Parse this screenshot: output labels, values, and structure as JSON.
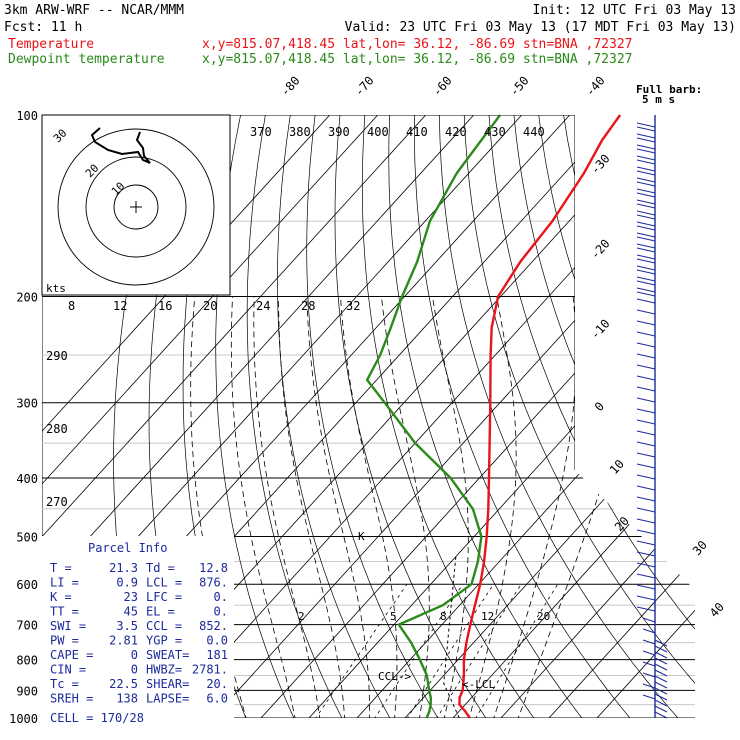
{
  "header": {
    "model": "3km ARW-WRF -- NCAR/MMM",
    "init": "Init: 12 UTC Fri 03 May 13",
    "fcst": "Fcst:   11 h",
    "valid": "Valid: 23 UTC Fri 03 May 13 (17 MDT Fri 03 May 13)",
    "temp_label": "Temperature",
    "temp_loc": "x,y=815.07,418.45   lat,lon= 36.12, -86.69  stn=BNA ,72327",
    "dew_label": "Dewpoint temperature",
    "dew_loc": "x,y=815.07,418.45   lat,lon= 36.12, -86.69  stn=BNA ,72327"
  },
  "colors": {
    "temperature": "#e8141a",
    "dewpoint": "#2a8a1a",
    "wind": "#1c2a9c",
    "grid": "#000000"
  },
  "chart_data": {
    "type": "line",
    "plot": "skew-T log-p",
    "pressure_levels": [
      "100",
      "200",
      "300",
      "400",
      "500",
      "600",
      "700",
      "800",
      "900",
      "1000"
    ],
    "isotherm_labels": [
      "-80",
      "-70",
      "-60",
      "-50",
      "-40",
      "-30",
      "-20",
      "-10",
      "0",
      "10",
      "20",
      "30",
      "40"
    ],
    "theta_labels": [
      "370",
      "380",
      "390",
      "400",
      "410",
      "420",
      "430",
      "440"
    ],
    "theta_low_labels": [
      "290",
      "280",
      "270"
    ],
    "mixing_ratio_labels": [
      "2",
      "5",
      "8",
      "12",
      "20"
    ],
    "hodo_speed_labels": [
      "8",
      "12",
      "16",
      "20",
      "24",
      "28",
      "32"
    ],
    "hodo_ring_labels": [
      "30",
      "20",
      "10"
    ],
    "hodo_kts": "kts",
    "barb_legend": [
      "Full barb:",
      "5 m s"
    ],
    "series": [
      {
        "name": "Temperature",
        "points": [
          [
            1000,
            23.5
          ],
          [
            975,
            21.3
          ],
          [
            950,
            18.8
          ],
          [
            925,
            17.5
          ],
          [
            900,
            16.8
          ],
          [
            850,
            14.2
          ],
          [
            800,
            11.2
          ],
          [
            750,
            8.5
          ],
          [
            700,
            5.9
          ],
          [
            650,
            3.2
          ],
          [
            600,
            0.3
          ],
          [
            550,
            -3.2
          ],
          [
            500,
            -7.4
          ],
          [
            450,
            -12.3
          ],
          [
            400,
            -18.0
          ],
          [
            350,
            -24.5
          ],
          [
            300,
            -32.0
          ],
          [
            250,
            -41.0
          ],
          [
            225,
            -46.0
          ],
          [
            200,
            -50.5
          ],
          [
            175,
            -52.5
          ],
          [
            150,
            -53.5
          ],
          [
            125,
            -56.0
          ],
          [
            110,
            -58.5
          ],
          [
            100,
            -59.5
          ]
        ]
      },
      {
        "name": "Dewpoint temperature",
        "points": [
          [
            1000,
            14.5
          ],
          [
            975,
            13.8
          ],
          [
            950,
            12.8
          ],
          [
            925,
            11.5
          ],
          [
            900,
            9.8
          ],
          [
            850,
            6.5
          ],
          [
            800,
            2.0
          ],
          [
            750,
            -3.0
          ],
          [
            700,
            -9.0
          ],
          [
            650,
            -3.5
          ],
          [
            600,
            -1.5
          ],
          [
            550,
            -4.5
          ],
          [
            500,
            -8.5
          ],
          [
            450,
            -15.5
          ],
          [
            400,
            -26.0
          ],
          [
            350,
            -40.0
          ],
          [
            300,
            -54.0
          ],
          [
            275,
            -62.0
          ],
          [
            250,
            -64.0
          ],
          [
            225,
            -67.0
          ],
          [
            200,
            -70.5
          ],
          [
            175,
            -74.0
          ],
          [
            150,
            -79.0
          ],
          [
            125,
            -82.5
          ],
          [
            100,
            -84.5
          ]
        ]
      }
    ],
    "parcel_info": {
      "title": "Parcel Info",
      "rows": [
        [
          "T  =",
          "21.3",
          "Td =",
          "12.8"
        ],
        [
          "LI =",
          "0.9",
          "LCL =",
          "876."
        ],
        [
          "K  =",
          "23",
          "LFC =",
          "0."
        ],
        [
          "TT =",
          "45",
          "EL  =",
          "0."
        ],
        [
          "SWI =",
          "3.5",
          "CCL =",
          "852."
        ],
        [
          "PW =",
          "2.81",
          "YGP =",
          "0.0"
        ],
        [
          "CAPE =",
          "0",
          "SWEAT=",
          "181"
        ],
        [
          "CIN  =",
          "0",
          "HWBZ=",
          "2781."
        ],
        [
          "Tc =",
          "22.5",
          "SHEAR=",
          "20."
        ],
        [
          "SREH =",
          "138",
          "LAPSE=",
          "6.0"
        ]
      ],
      "cell": "CELL = 170/28"
    },
    "annotations": {
      "lcl": "LCL",
      "ccl": "CCL",
      "marker": "K"
    }
  }
}
